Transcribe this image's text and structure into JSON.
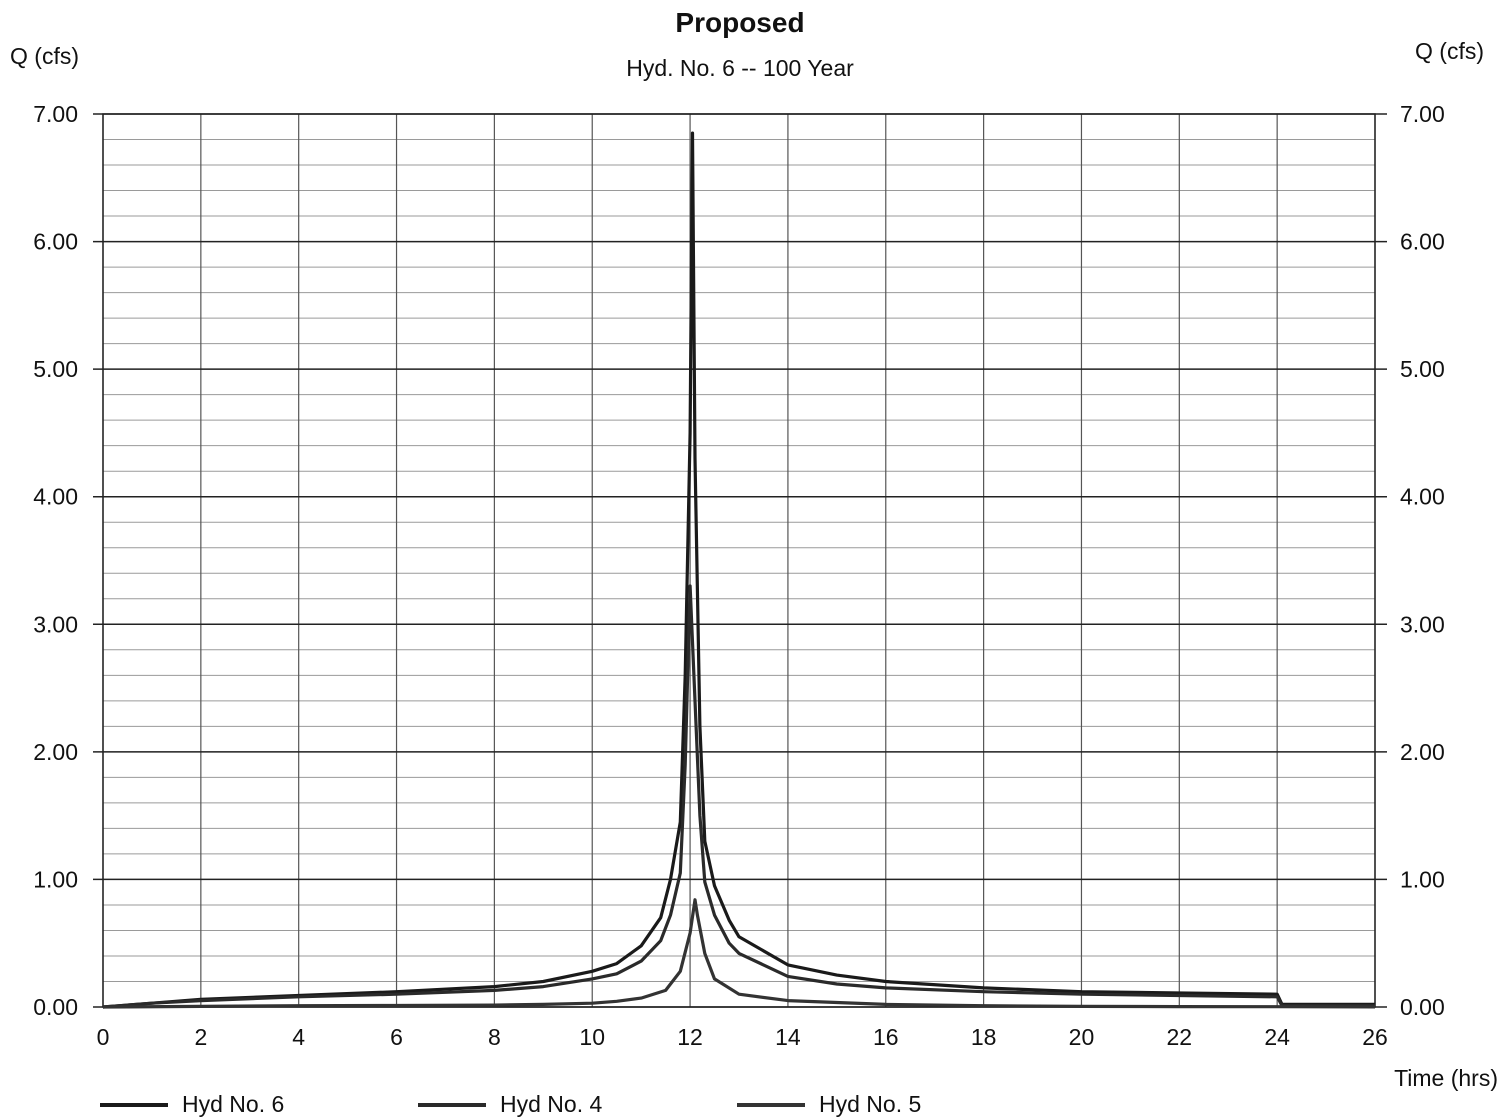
{
  "chart_data": {
    "type": "line",
    "title": "Proposed",
    "subtitle": "Hyd. No. 6 -- 100 Year",
    "ylabel_left": "Q (cfs)",
    "ylabel_right": "Q (cfs)",
    "xlabel": "Time (hrs)",
    "xlim": [
      0,
      26
    ],
    "ylim": [
      0,
      7
    ],
    "x_ticks": [
      "0",
      "2",
      "4",
      "6",
      "8",
      "10",
      "12",
      "14",
      "16",
      "18",
      "20",
      "22",
      "24",
      "26"
    ],
    "y_ticks": [
      "0.00",
      "1.00",
      "2.00",
      "3.00",
      "4.00",
      "5.00",
      "6.00",
      "7.00"
    ],
    "grid": true,
    "legend_position": "bottom",
    "series": [
      {
        "name": "Hyd No. 6",
        "color": "#1a1a1a",
        "x": [
          0,
          1,
          2,
          4,
          6,
          8,
          9,
          10,
          10.5,
          11,
          11.4,
          11.6,
          11.8,
          11.9,
          12.0,
          12.05,
          12.1,
          12.2,
          12.3,
          12.5,
          12.8,
          13,
          14,
          15,
          16,
          18,
          20,
          22,
          24,
          24.1,
          26
        ],
        "values": [
          0,
          0.03,
          0.06,
          0.09,
          0.12,
          0.16,
          0.2,
          0.28,
          0.34,
          0.48,
          0.7,
          1.0,
          1.45,
          2.6,
          4.5,
          6.85,
          4.3,
          2.2,
          1.3,
          0.95,
          0.68,
          0.55,
          0.33,
          0.25,
          0.2,
          0.15,
          0.12,
          0.11,
          0.1,
          0.02,
          0.02
        ]
      },
      {
        "name": "Hyd No. 4",
        "color": "#2a2a2a",
        "x": [
          0,
          1,
          2,
          4,
          6,
          8,
          9,
          10,
          10.5,
          11,
          11.4,
          11.6,
          11.8,
          11.9,
          12.0,
          12.1,
          12.2,
          12.3,
          12.5,
          12.8,
          13,
          14,
          15,
          16,
          18,
          20,
          22,
          24,
          24.1,
          26
        ],
        "values": [
          0,
          0.03,
          0.05,
          0.08,
          0.1,
          0.13,
          0.16,
          0.22,
          0.26,
          0.36,
          0.52,
          0.72,
          1.05,
          1.9,
          3.3,
          2.4,
          1.5,
          0.98,
          0.72,
          0.5,
          0.42,
          0.24,
          0.18,
          0.15,
          0.12,
          0.1,
          0.09,
          0.08,
          0.01,
          0.01
        ]
      },
      {
        "name": "Hyd No. 5",
        "color": "#333333",
        "x": [
          0,
          2,
          4,
          6,
          8,
          9,
          10,
          10.5,
          11,
          11.5,
          11.8,
          12.0,
          12.1,
          12.15,
          12.3,
          12.5,
          13,
          14,
          16,
          18,
          20,
          22,
          24,
          26
        ],
        "values": [
          0,
          0.005,
          0.01,
          0.012,
          0.015,
          0.02,
          0.03,
          0.045,
          0.07,
          0.13,
          0.28,
          0.58,
          0.84,
          0.72,
          0.42,
          0.22,
          0.1,
          0.05,
          0.02,
          0.01,
          0.005,
          0.003,
          0.002,
          0.001
        ]
      }
    ]
  }
}
